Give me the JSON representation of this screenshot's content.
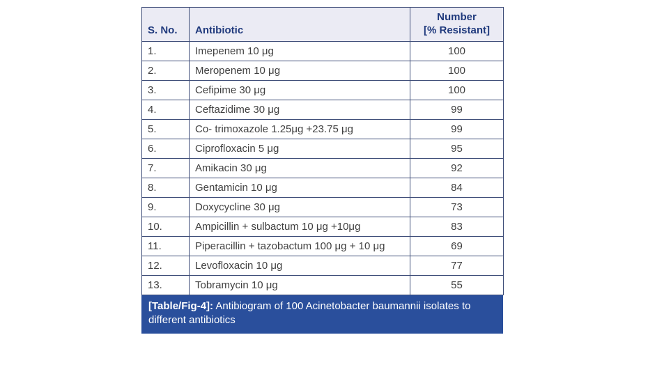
{
  "colors": {
    "table_border": "#3e4d78",
    "header_bg": "#ebebf4",
    "header_text": "#203a7d",
    "body_text": "#404040",
    "caption_bg": "#2a4f9c",
    "caption_text": "#ffffff",
    "page_bg": "#ffffff"
  },
  "table": {
    "header": {
      "sno": "S. No.",
      "antibiotic": "Antibiotic",
      "number_line1": "Number",
      "number_line2": "[% Resistant]"
    },
    "rows": [
      {
        "sno": "1.",
        "antibiotic": "Imepenem 10 μg",
        "value": "100"
      },
      {
        "sno": "2.",
        "antibiotic": "Meropenem 10 μg",
        "value": "100"
      },
      {
        "sno": "3.",
        "antibiotic": "Cefipime 30 μg",
        "value": "100"
      },
      {
        "sno": "4.",
        "antibiotic": "Ceftazidime 30 μg",
        "value": "99"
      },
      {
        "sno": "5.",
        "antibiotic": "Co- trimoxazole 1.25μg +23.75 μg",
        "value": "99"
      },
      {
        "sno": "6.",
        "antibiotic": "Ciprofloxacin 5 μg",
        "value": "95"
      },
      {
        "sno": "7.",
        "antibiotic": "Amikacin 30 μg",
        "value": "92"
      },
      {
        "sno": "8.",
        "antibiotic": "Gentamicin 10 μg",
        "value": "84"
      },
      {
        "sno": "9.",
        "antibiotic": "Doxycycline 30 μg",
        "value": "73"
      },
      {
        "sno": "10.",
        "antibiotic": "Ampicillin + sulbactum 10 μg +10μg",
        "value": "83"
      },
      {
        "sno": "11.",
        "antibiotic": "Piperacillin + tazobactum 100 μg + 10 μg",
        "value": "69"
      },
      {
        "sno": "12.",
        "antibiotic": "Levofloxacin 10 μg",
        "value": "77"
      },
      {
        "sno": "13.",
        "antibiotic": "Tobramycin 10 μg",
        "value": "55"
      }
    ],
    "caption": {
      "label": "[Table/Fig-4]:",
      "text": "Antibiogram of 100 Acinetobacter baumannii isolates to different antibiotics"
    }
  },
  "chart_data": {
    "type": "table",
    "title": "[Table/Fig-4]: Antibiogram of 100 Acinetobacter baumannii isolates to different antibiotics",
    "columns": [
      "S. No.",
      "Antibiotic",
      "Number [% Resistant]"
    ],
    "categories": [
      "Imepenem 10 μg",
      "Meropenem 10 μg",
      "Cefipime 30 μg",
      "Ceftazidime 30 μg",
      "Co- trimoxazole 1.25μg +23.75 μg",
      "Ciprofloxacin 5 μg",
      "Amikacin 30 μg",
      "Gentamicin 10 μg",
      "Doxycycline 30 μg",
      "Ampicillin + sulbactum 10 μg +10μg",
      "Piperacillin + tazobactum 100 μg + 10 μg",
      "Levofloxacin 10 μg",
      "Tobramycin 10 μg"
    ],
    "values": [
      100,
      100,
      100,
      99,
      99,
      95,
      92,
      84,
      73,
      83,
      69,
      77,
      55
    ]
  }
}
